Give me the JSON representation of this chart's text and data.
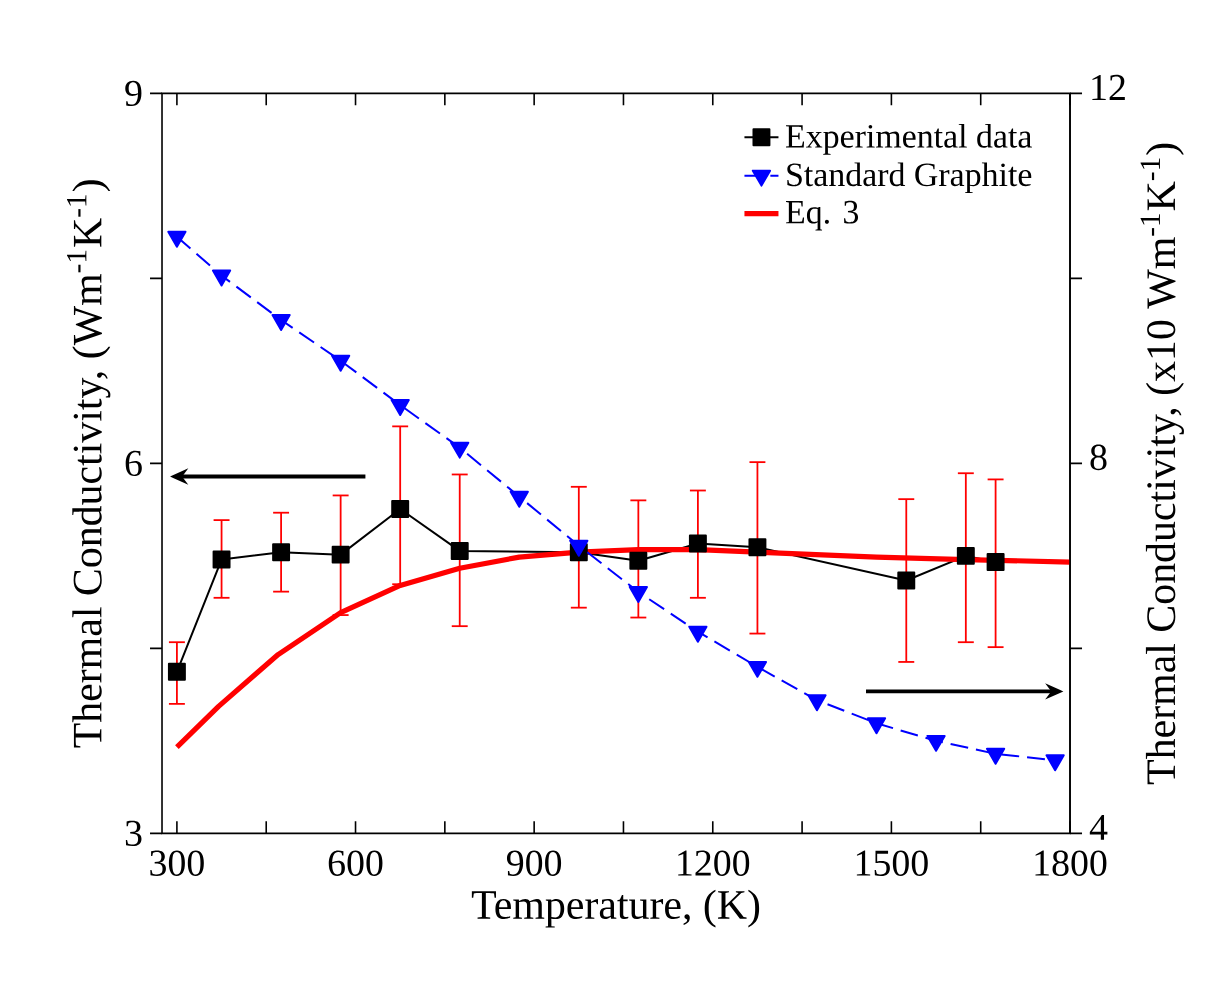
{
  "chart_data": {
    "type": "line",
    "xlabel": "Temperature, (K)",
    "ylabel": "Thermal Conductivity, (Wm$^{-1}$K$^{-1}$)",
    "y2label": "Thermal Conductivity, (x10 Wm$^{-1}$K$^{-1}$)",
    "xlim": [
      275,
      1800
    ],
    "xticks": [
      300,
      {
        "value": 450,
        "label": null
      },
      600,
      {
        "value": 750,
        "label": null
      },
      900,
      {
        "value": 1050,
        "label": null
      },
      1200,
      {
        "value": 1350,
        "label": null
      },
      1500,
      {
        "value": 1650,
        "label": null
      },
      1800
    ],
    "ylim": [
      3,
      9
    ],
    "yticks": [
      3,
      {
        "value": 4.5,
        "label": null
      },
      6,
      {
        "value": 7.5,
        "label": null
      },
      9
    ],
    "y2lim": [
      4,
      12
    ],
    "y2ticks": [
      4,
      {
        "value": 6,
        "label": null
      },
      8,
      {
        "value": 10,
        "label": null
      },
      12
    ],
    "legend": "top right",
    "series": [
      {
        "name": "Experimental data",
        "color": "#000000",
        "marker": "square",
        "line_style": "solid",
        "x": [
          300,
          375,
          475,
          575,
          675,
          775,
          975,
          1075,
          1175,
          1275,
          1525,
          1625,
          1675
        ],
        "values": [
          4.31,
          5.22,
          5.28,
          5.26,
          5.63,
          5.29,
          5.28,
          5.21,
          5.35,
          5.32,
          5.05,
          5.25,
          5.2
        ],
        "errors": [
          [
            4.05,
            4.55
          ],
          [
            4.91,
            5.54
          ],
          [
            4.96,
            5.6
          ],
          [
            4.77,
            5.74
          ],
          [
            5.02,
            6.3
          ],
          [
            4.68,
            5.91
          ],
          [
            4.83,
            5.81
          ],
          [
            4.75,
            5.7
          ],
          [
            4.91,
            5.78
          ],
          [
            4.62,
            6.01
          ],
          [
            4.39,
            5.71
          ],
          [
            4.55,
            5.92
          ],
          [
            4.51,
            5.87
          ]
        ]
      },
      {
        "name": "Standard Graphite",
        "color": "#0000ff",
        "marker": "triangle",
        "line_style": "dashed",
        "axis": "y2",
        "x": [
          300,
          375,
          475,
          575,
          675,
          775,
          875,
          975,
          1075,
          1175,
          1275,
          1375,
          1475,
          1575,
          1675,
          1775
        ],
        "values": [
          10.45,
          10.03,
          9.55,
          9.11,
          8.63,
          8.17,
          7.64,
          7.11,
          6.61,
          6.18,
          5.8,
          5.44,
          5.19,
          5.0,
          4.86,
          4.79
        ]
      },
      {
        "name": "Eq. 3",
        "color": "#ff0000",
        "marker": "none",
        "line_style": "solid",
        "x": [
          300,
          370,
          470,
          575,
          675,
          775,
          875,
          975,
          1075,
          1175,
          1275,
          1475,
          1625,
          1800
        ],
        "values": [
          3.7,
          4.03,
          4.45,
          4.79,
          5.01,
          5.15,
          5.24,
          5.28,
          5.3,
          5.3,
          5.28,
          5.24,
          5.22,
          5.2
        ]
      }
    ]
  }
}
